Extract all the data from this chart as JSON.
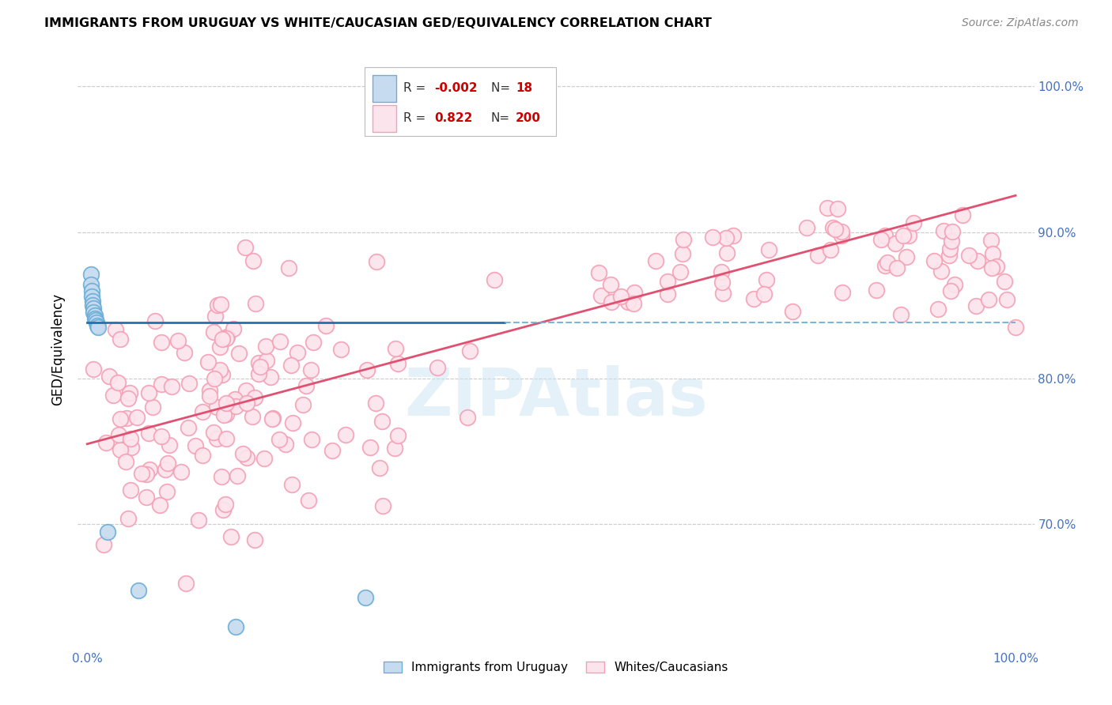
{
  "title": "IMMIGRANTS FROM URUGUAY VS WHITE/CAUCASIAN GED/EQUIVALENCY CORRELATION CHART",
  "source": "Source: ZipAtlas.com",
  "ylabel": "GED/Equivalency",
  "legend_label_blue": "Immigrants from Uruguay",
  "legend_label_pink": "Whites/Caucasians",
  "r_blue": "-0.002",
  "n_blue": "18",
  "r_pink": "0.822",
  "n_pink": "200",
  "blue_color": "#6baed6",
  "blue_line_color": "#2171b5",
  "blue_fill": "#c6dbef",
  "pink_color": "#f4a0b5",
  "pink_fill": "#fce4ec",
  "pink_line_color": "#e05070",
  "watermark_text": "ZIPAtlas",
  "ylim": [
    0.615,
    1.025
  ],
  "xlim": [
    -0.01,
    1.02
  ],
  "y_ticks": [
    0.7,
    0.8,
    0.9,
    1.0
  ],
  "y_tick_labels": [
    "70.0%",
    "80.0%",
    "90.0%",
    "100.0%"
  ],
  "x_ticks": [
    0.0,
    0.2,
    0.4,
    0.6,
    0.8,
    1.0
  ],
  "x_tick_labels": [
    "0.0%",
    "",
    "",
    "",
    "",
    "100.0%"
  ],
  "blue_trend_y": 0.838,
  "pink_trend_x0": 0.0,
  "pink_trend_y0": 0.755,
  "pink_trend_x1": 1.0,
  "pink_trend_y1": 0.925
}
